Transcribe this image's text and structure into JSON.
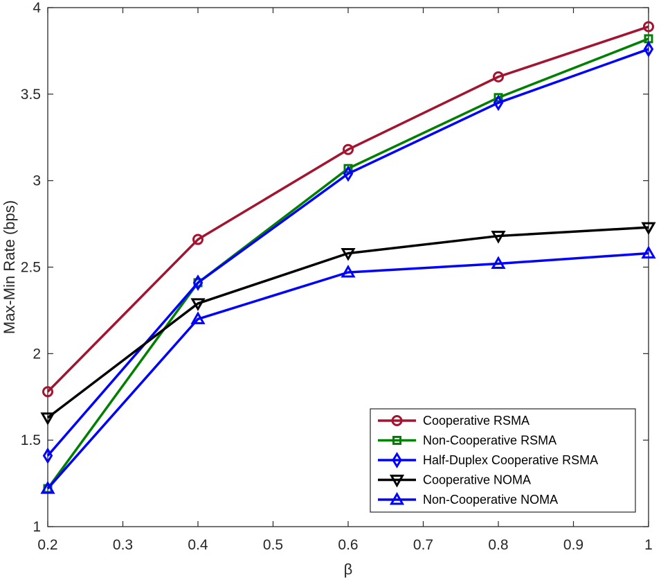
{
  "chart_data": {
    "type": "line",
    "xlabel": "β",
    "ylabel": "Max-Min Rate (bps)",
    "xlim": [
      0.2,
      1
    ],
    "ylim": [
      1,
      4
    ],
    "xticks": [
      "0.2",
      "0.3",
      "0.4",
      "0.5",
      "0.6",
      "0.7",
      "0.8",
      "0.9",
      "1"
    ],
    "yticks": [
      "1",
      "1.5",
      "2",
      "2.5",
      "3",
      "3.5",
      "4"
    ],
    "grid": false,
    "legend_position": "bottom-right",
    "x": [
      0.2,
      0.4,
      0.6,
      0.8,
      1.0
    ],
    "series": [
      {
        "name": "Cooperative RSMA",
        "color": "#a2142f",
        "marker": "circle",
        "values": [
          1.78,
          2.66,
          3.18,
          3.6,
          3.89
        ]
      },
      {
        "name": "Non-Cooperative RSMA",
        "color": "#008000",
        "marker": "square",
        "values": [
          1.22,
          2.41,
          3.07,
          3.48,
          3.82
        ]
      },
      {
        "name": "Half-Duplex Cooperative RSMA",
        "color": "#0000ff",
        "marker": "diamond",
        "values": [
          1.41,
          2.41,
          3.04,
          3.45,
          3.76
        ]
      },
      {
        "name": "Cooperative NOMA",
        "color": "#000000",
        "marker": "triangle-down",
        "values": [
          1.63,
          2.29,
          2.58,
          2.68,
          2.73
        ]
      },
      {
        "name": "Non-Cooperative NOMA",
        "color": "#0000ff",
        "marker": "triangle-up",
        "values": [
          1.22,
          2.2,
          2.47,
          2.52,
          2.58
        ]
      }
    ]
  }
}
